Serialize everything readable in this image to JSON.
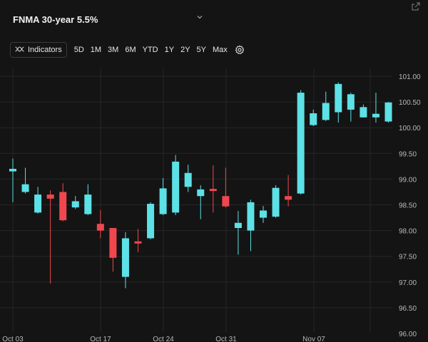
{
  "header": {
    "title": "FNMA 30-year 5.5%",
    "dropdown_icon": "chevron-down-icon",
    "popout_icon": "popout-icon"
  },
  "toolbar": {
    "indicators_label": "Indicators",
    "indicators_icon": "indicators-icon",
    "ranges": [
      "5D",
      "1M",
      "3M",
      "6M",
      "YTD",
      "1Y",
      "2Y",
      "5Y",
      "Max"
    ],
    "settings_icon": "gear-icon"
  },
  "colors": {
    "up": "#5ce1e6",
    "down": "#f0474f",
    "background": "#141414",
    "grid": "#262626",
    "axis_text": "#b8b8b8"
  },
  "chart_data": {
    "type": "candlestick",
    "x_tick_labels": [
      "Oct 03",
      "Oct 17",
      "Oct 24",
      "Oct 31",
      "Nov 07"
    ],
    "y_ticks": [
      "101.00",
      "100.50",
      "100.00",
      "99.50",
      "99.00",
      "98.50",
      "98.00",
      "97.50",
      "97.00",
      "96.50",
      "96.00"
    ],
    "ylim": [
      96.0,
      101.0
    ],
    "grid": true,
    "candles": [
      {
        "open": 99.15,
        "close": 99.2,
        "high": 99.4,
        "low": 98.55
      },
      {
        "open": 98.75,
        "close": 98.9,
        "high": 99.22,
        "low": 98.72
      },
      {
        "open": 98.35,
        "close": 98.7,
        "high": 98.85,
        "low": 98.33
      },
      {
        "open": 98.7,
        "close": 98.62,
        "high": 98.78,
        "low": 96.97
      },
      {
        "open": 98.75,
        "close": 98.2,
        "high": 98.92,
        "low": 98.18
      },
      {
        "open": 98.45,
        "close": 98.57,
        "high": 98.67,
        "low": 98.42
      },
      {
        "open": 98.32,
        "close": 98.7,
        "high": 98.9,
        "low": 98.3
      },
      {
        "open": 98.13,
        "close": 98.0,
        "high": 98.4,
        "low": 97.85
      },
      {
        "open": 98.05,
        "close": 97.47,
        "high": 98.05,
        "low": 97.2
      },
      {
        "open": 97.1,
        "close": 97.85,
        "high": 97.97,
        "low": 96.88
      },
      {
        "open": 97.79,
        "close": 97.76,
        "high": 98.03,
        "low": 97.58
      },
      {
        "open": 97.85,
        "close": 98.52,
        "high": 98.55,
        "low": 97.83
      },
      {
        "open": 98.32,
        "close": 98.82,
        "high": 99.02,
        "low": 98.3
      },
      {
        "open": 98.35,
        "close": 99.34,
        "high": 99.47,
        "low": 98.3
      },
      {
        "open": 98.85,
        "close": 99.12,
        "high": 99.28,
        "low": 98.75
      },
      {
        "open": 98.67,
        "close": 98.8,
        "high": 98.88,
        "low": 98.22
      },
      {
        "open": 98.81,
        "close": 98.8,
        "high": 99.27,
        "low": 98.35
      },
      {
        "open": 98.67,
        "close": 98.47,
        "high": 99.22,
        "low": 98.45
      },
      {
        "open": 98.05,
        "close": 98.15,
        "high": 98.38,
        "low": 97.53
      },
      {
        "open": 98.0,
        "close": 98.55,
        "high": 98.6,
        "low": 97.6
      },
      {
        "open": 98.25,
        "close": 98.39,
        "high": 98.48,
        "low": 98.15
      },
      {
        "open": 98.27,
        "close": 98.83,
        "high": 98.88,
        "low": 98.25
      },
      {
        "open": 98.67,
        "close": 98.6,
        "high": 99.08,
        "low": 98.47
      },
      {
        "open": 98.72,
        "close": 100.68,
        "high": 100.73,
        "low": 98.7
      },
      {
        "open": 100.05,
        "close": 100.28,
        "high": 100.35,
        "low": 100.03
      },
      {
        "open": 100.15,
        "close": 100.48,
        "high": 100.7,
        "low": 100.13
      },
      {
        "open": 100.3,
        "close": 100.85,
        "high": 100.88,
        "low": 100.1
      },
      {
        "open": 100.35,
        "close": 100.65,
        "high": 100.68,
        "low": 100.12
      },
      {
        "open": 100.2,
        "close": 100.4,
        "high": 100.45,
        "low": 100.2
      },
      {
        "open": 100.2,
        "close": 100.27,
        "high": 100.68,
        "low": 100.1
      },
      {
        "open": 100.12,
        "close": 100.49,
        "high": 100.5,
        "low": 100.1
      }
    ]
  }
}
